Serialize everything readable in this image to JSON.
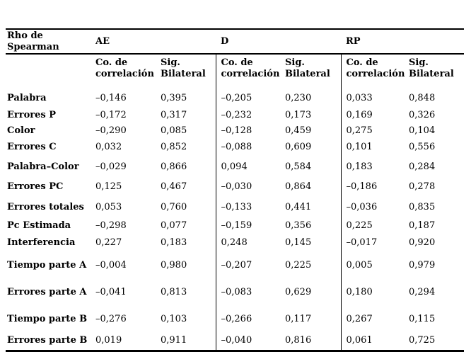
{
  "table": {
    "corner_label": "Rho de Spearman",
    "groups": [
      {
        "label": "AE"
      },
      {
        "label": "D"
      },
      {
        "label": "RP"
      }
    ],
    "subheaders": {
      "co": "Co. de correlación",
      "sig": "Sig. Bilateral"
    },
    "rows": [
      {
        "label": "Palabra",
        "values": [
          "–0,146",
          "0,395",
          "–0,205",
          "0,230",
          "0,033",
          "0,848"
        ]
      },
      {
        "label": "Errores P",
        "values": [
          "–0,172",
          "0,317",
          "–0,232",
          "0,173",
          "0,169",
          "0,326"
        ]
      },
      {
        "label": "Color",
        "values": [
          "–0,290",
          "0,085",
          "–0,128",
          "0,459",
          "0,275",
          "0,104"
        ]
      },
      {
        "label": "Errores C",
        "values": [
          "0,032",
          "0,852",
          "–0,088",
          "0,609",
          "0,101",
          "0,556"
        ]
      },
      {
        "label": "Palabra–Color",
        "values": [
          "–0,029",
          "0,866",
          "0,094",
          "0,584",
          "0,183",
          "0,284"
        ]
      },
      {
        "label": "Errores PC",
        "values": [
          "0,125",
          "0,467",
          "–0,030",
          "0,864",
          "–0,186",
          "0,278"
        ]
      },
      {
        "label": "Errores totales",
        "values": [
          "0,053",
          "0,760",
          "–0,133",
          "0,441",
          "–0,036",
          "0,835"
        ]
      },
      {
        "label": "Pc Estimada",
        "values": [
          "–0,298",
          "0,077",
          "–0,159",
          "0,356",
          "0,225",
          "0,187"
        ]
      },
      {
        "label": "Interferencia",
        "values": [
          "0,227",
          "0,183",
          "0,248",
          "0,145",
          "–0,017",
          "0,920"
        ]
      },
      {
        "label": "Tiempo parte A",
        "values": [
          "–0,004",
          "0,980",
          "–0,207",
          "0,225",
          "0,005",
          "0,979"
        ]
      },
      {
        "label": "Errores parte A",
        "values": [
          "–0,041",
          "0,813",
          "–0,083",
          "0,629",
          "0,180",
          "0,294"
        ]
      },
      {
        "label": "Tiempo parte B",
        "values": [
          "–0,276",
          "0,103",
          "–0,266",
          "0,117",
          "0,267",
          "0,115"
        ]
      },
      {
        "label": "Errores parte B",
        "values": [
          "0,019",
          "0,911",
          "–0,040",
          "0,816",
          "0,061",
          "0,725"
        ]
      }
    ]
  },
  "colors": {
    "text": "#000000",
    "background": "#ffffff",
    "rule": "#000000"
  }
}
